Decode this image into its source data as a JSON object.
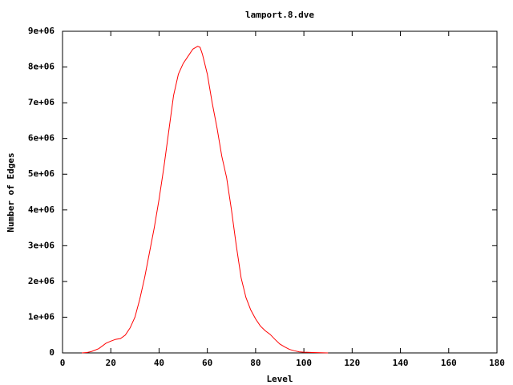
{
  "chart_data": {
    "type": "line",
    "title": "lamport.8.dve",
    "x_label": "Level",
    "y_label": "Number of Edges",
    "x": [
      8,
      10,
      12,
      15,
      18,
      20,
      22,
      24,
      26,
      28,
      30,
      32,
      34,
      36,
      38,
      40,
      42,
      44,
      46,
      48,
      50,
      52,
      54,
      56,
      57,
      58,
      60,
      62,
      64,
      66,
      68,
      70,
      72,
      74,
      76,
      78,
      80,
      82,
      84,
      86,
      88,
      90,
      92,
      94,
      96,
      98,
      100,
      104,
      110
    ],
    "series": [
      {
        "color": "#ff0000",
        "values": [
          0,
          10000,
          40000,
          120000,
          270000,
          330000,
          380000,
          400000,
          500000,
          700000,
          1000000,
          1500000,
          2100000,
          2800000,
          3500000,
          4300000,
          5200000,
          6200000,
          7200000,
          7800000,
          8100000,
          8300000,
          8500000,
          8580000,
          8550000,
          8350000,
          7800000,
          7000000,
          6300000,
          5500000,
          4900000,
          4000000,
          3000000,
          2100000,
          1550000,
          1200000,
          950000,
          750000,
          620000,
          520000,
          380000,
          250000,
          170000,
          100000,
          60000,
          30000,
          20000,
          10000,
          0
        ]
      }
    ],
    "xlim": [
      0,
      180
    ],
    "xticks": [
      0,
      20,
      40,
      60,
      80,
      100,
      120,
      140,
      160,
      180
    ],
    "ylim": [
      0,
      9000000
    ],
    "yticks": [
      0,
      {
        "value": 1000000,
        "label": "1e+06"
      },
      {
        "value": 2000000,
        "label": "2e+06"
      },
      {
        "value": 3000000,
        "label": "3e+06"
      },
      {
        "value": 4000000,
        "label": "4e+06"
      },
      {
        "value": 5000000,
        "label": "5e+06"
      },
      {
        "value": 6000000,
        "label": "6e+06"
      },
      {
        "value": 7000000,
        "label": "7e+06"
      },
      {
        "value": 8000000,
        "label": "8e+06"
      },
      {
        "value": 9000000,
        "label": "9e+06"
      }
    ],
    "grid": false
  }
}
